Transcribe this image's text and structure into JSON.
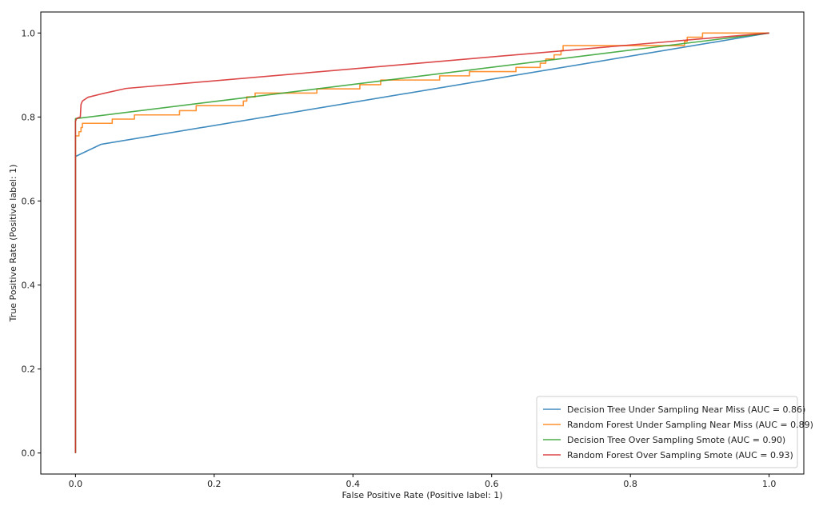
{
  "chart_data": {
    "type": "line",
    "title": "",
    "xlabel": "False Positive Rate (Positive label: 1)",
    "ylabel": "True Positive Rate (Positive label: 1)",
    "xlim": [
      -0.05,
      1.05
    ],
    "ylim": [
      -0.05,
      1.05
    ],
    "xticks": [
      0.0,
      0.2,
      0.4,
      0.6,
      0.8,
      1.0
    ],
    "xtick_labels": [
      "0.0",
      "0.2",
      "0.4",
      "0.6",
      "0.8",
      "1.0"
    ],
    "yticks": [
      0.0,
      0.2,
      0.4,
      0.6,
      0.8,
      1.0
    ],
    "ytick_labels": [
      "0.0",
      "0.2",
      "0.4",
      "0.6",
      "0.8",
      "1.0"
    ],
    "grid": false,
    "legend_position": "lower-right",
    "series": [
      {
        "name": "Decision Tree Under Sampling Near Miss (AUC = 0.86)",
        "color": "#1f77b4",
        "points": [
          [
            0.0,
            0.0
          ],
          [
            0.0,
            0.706
          ],
          [
            0.037,
            0.735
          ],
          [
            1.0,
            1.0
          ]
        ]
      },
      {
        "name": "Random Forest Under Sampling Near Miss (AUC = 0.89)",
        "color": "#ff7f0e",
        "points": [
          [
            0.0,
            0.0
          ],
          [
            0.0,
            0.755
          ],
          [
            0.005,
            0.755
          ],
          [
            0.005,
            0.765
          ],
          [
            0.008,
            0.765
          ],
          [
            0.008,
            0.775
          ],
          [
            0.01,
            0.775
          ],
          [
            0.01,
            0.785
          ],
          [
            0.015,
            0.785
          ],
          [
            0.053,
            0.785
          ],
          [
            0.053,
            0.795
          ],
          [
            0.085,
            0.795
          ],
          [
            0.085,
            0.805
          ],
          [
            0.15,
            0.805
          ],
          [
            0.15,
            0.815
          ],
          [
            0.174,
            0.815
          ],
          [
            0.174,
            0.827
          ],
          [
            0.242,
            0.827
          ],
          [
            0.242,
            0.838
          ],
          [
            0.247,
            0.838
          ],
          [
            0.247,
            0.848
          ],
          [
            0.259,
            0.848
          ],
          [
            0.259,
            0.857
          ],
          [
            0.348,
            0.857
          ],
          [
            0.348,
            0.867
          ],
          [
            0.41,
            0.867
          ],
          [
            0.41,
            0.877
          ],
          [
            0.44,
            0.877
          ],
          [
            0.44,
            0.888
          ],
          [
            0.525,
            0.888
          ],
          [
            0.525,
            0.898
          ],
          [
            0.568,
            0.898
          ],
          [
            0.568,
            0.908
          ],
          [
            0.635,
            0.908
          ],
          [
            0.635,
            0.918
          ],
          [
            0.67,
            0.918
          ],
          [
            0.67,
            0.928
          ],
          [
            0.678,
            0.928
          ],
          [
            0.678,
            0.938
          ],
          [
            0.69,
            0.938
          ],
          [
            0.69,
            0.948
          ],
          [
            0.7,
            0.948
          ],
          [
            0.7,
            0.958
          ],
          [
            0.703,
            0.958
          ],
          [
            0.703,
            0.97
          ],
          [
            0.878,
            0.97
          ],
          [
            0.878,
            0.98
          ],
          [
            0.882,
            0.98
          ],
          [
            0.882,
            0.99
          ],
          [
            0.904,
            0.99
          ],
          [
            0.904,
            1.0
          ],
          [
            1.0,
            1.0
          ]
        ]
      },
      {
        "name": "Decision Tree Over Sampling Smote (AUC = 0.90)",
        "color": "#2ca02c",
        "points": [
          [
            0.0,
            0.0
          ],
          [
            0.0,
            0.796
          ],
          [
            1.0,
            1.0
          ]
        ]
      },
      {
        "name": "Random Forest Over Sampling Smote (AUC = 0.93)",
        "color": "#d62728",
        "points": [
          [
            0.0,
            0.0
          ],
          [
            0.0,
            0.79
          ],
          [
            0.002,
            0.797
          ],
          [
            0.007,
            0.8
          ],
          [
            0.008,
            0.83
          ],
          [
            0.01,
            0.838
          ],
          [
            0.018,
            0.847
          ],
          [
            0.04,
            0.856
          ],
          [
            0.073,
            0.868
          ],
          [
            1.0,
            1.0
          ]
        ]
      }
    ]
  }
}
